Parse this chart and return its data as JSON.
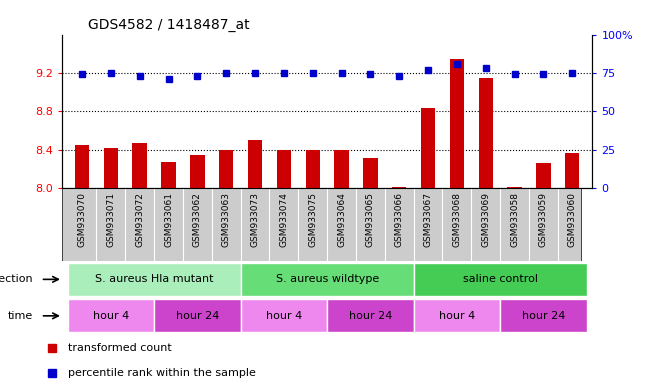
{
  "title": "GDS4582 / 1418487_at",
  "samples": [
    "GSM933070",
    "GSM933071",
    "GSM933072",
    "GSM933061",
    "GSM933062",
    "GSM933063",
    "GSM933073",
    "GSM933074",
    "GSM933075",
    "GSM933064",
    "GSM933065",
    "GSM933066",
    "GSM933067",
    "GSM933068",
    "GSM933069",
    "GSM933058",
    "GSM933059",
    "GSM933060"
  ],
  "red_values": [
    8.45,
    8.42,
    8.47,
    8.27,
    8.35,
    8.4,
    8.5,
    8.4,
    8.4,
    8.4,
    8.31,
    8.01,
    8.83,
    9.35,
    9.15,
    8.01,
    8.26,
    8.37
  ],
  "blue_values_pct": [
    74,
    75,
    73,
    71,
    73,
    75,
    75,
    75,
    75,
    75,
    74,
    73,
    77,
    81,
    78,
    74,
    74,
    75
  ],
  "ylim_left": [
    8.0,
    9.6
  ],
  "ylim_right": [
    0,
    100
  ],
  "yticks_left": [
    8.0,
    8.4,
    8.8,
    9.2
  ],
  "yticks_right": [
    0,
    25,
    50,
    75,
    100
  ],
  "bar_color": "#cc0000",
  "dot_color": "#0000cc",
  "infection_groups": [
    {
      "label": "S. aureus Hla mutant",
      "start": 0,
      "end": 6,
      "color": "#aaeebb"
    },
    {
      "label": "S. aureus wildtype",
      "start": 6,
      "end": 12,
      "color": "#66dd77"
    },
    {
      "label": "saline control",
      "start": 12,
      "end": 18,
      "color": "#44cc55"
    }
  ],
  "time_colors": {
    "hour 4": "#ee88ee",
    "hour 24": "#cc44cc"
  },
  "time_groups": [
    {
      "label": "hour 4",
      "start": 0,
      "end": 3
    },
    {
      "label": "hour 24",
      "start": 3,
      "end": 6
    },
    {
      "label": "hour 4",
      "start": 6,
      "end": 9
    },
    {
      "label": "hour 24",
      "start": 9,
      "end": 12
    },
    {
      "label": "hour 4",
      "start": 12,
      "end": 15
    },
    {
      "label": "hour 24",
      "start": 15,
      "end": 18
    }
  ],
  "infection_label": "infection",
  "time_label": "time",
  "legend_red": "transformed count",
  "legend_blue": "percentile rank within the sample",
  "tick_bg_color": "#cccccc",
  "bar_width": 0.5
}
